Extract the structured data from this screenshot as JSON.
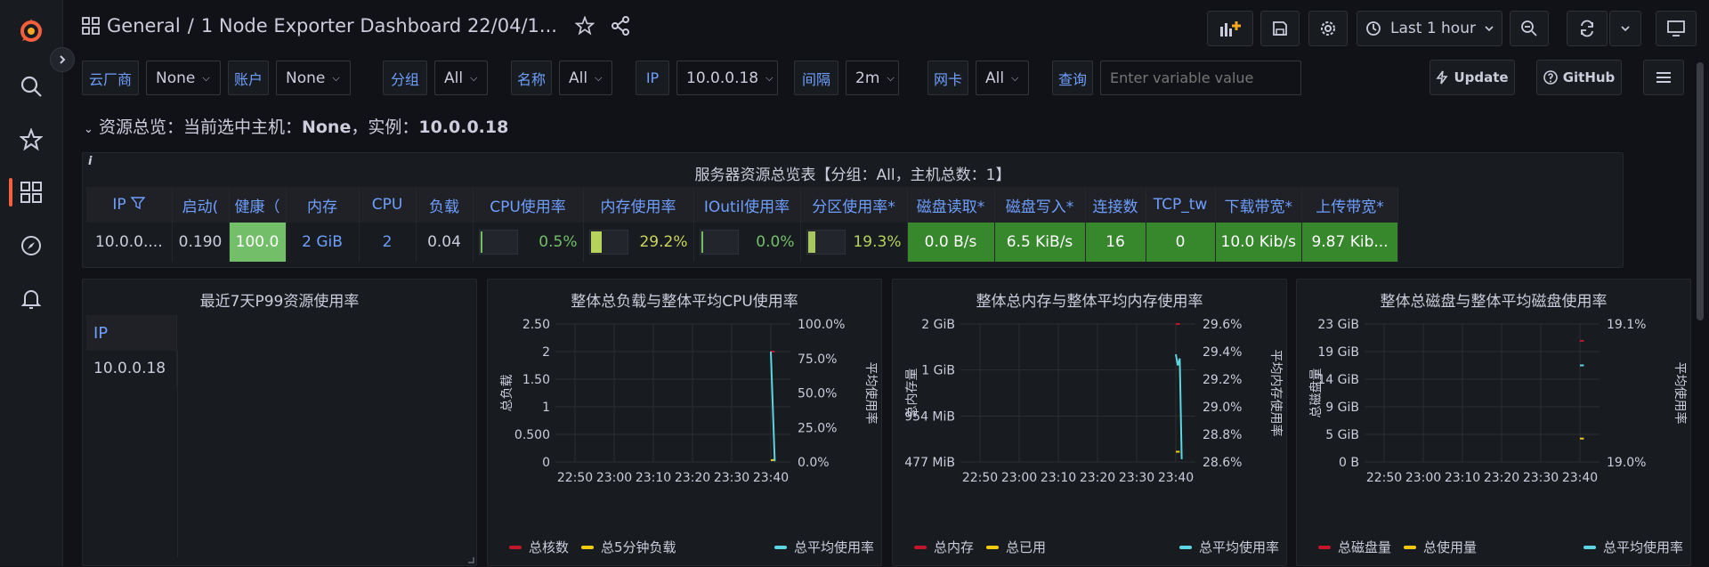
{
  "breadcrumb": {
    "folder": "General",
    "separator": "/",
    "title": "1 Node Exporter Dashboard 22/04/1..."
  },
  "toolbar": {
    "time_range": "Last 1 hour"
  },
  "variables": [
    {
      "label": "云厂商",
      "value": "None"
    },
    {
      "label": "账户",
      "value": "None"
    },
    {
      "label": "分组",
      "value": "All"
    },
    {
      "label": "名称",
      "value": "All"
    },
    {
      "label": "IP",
      "value": "10.0.0.18"
    },
    {
      "label": "间隔",
      "value": "2m"
    },
    {
      "label": "网卡",
      "value": "All"
    },
    {
      "label": "查询",
      "value": ""
    }
  ],
  "query_placeholder": "Enter variable value",
  "buttons": {
    "update": "Update",
    "github": "GitHub"
  },
  "row": {
    "prefix": "资源总览：当前选中主机：",
    "host": "None",
    "mid": "，实例：",
    "instance": "10.0.0.18"
  },
  "overview": {
    "title": "服务器资源总览表【分组：All，主机总数：1】",
    "info_icon": "i",
    "headers": [
      "IP",
      "启动(",
      "健康（",
      "内存",
      "CPU",
      "负载",
      "CPU使用率",
      "内存使用率",
      "IOutil使用率",
      "分区使用率*",
      "磁盘读取*",
      "磁盘写入*",
      "连接数",
      "TCP_tw",
      "下载带宽*",
      "上传带宽*"
    ],
    "row": {
      "ip": "10.0.0....",
      "uptime": "0.190",
      "health": "100.0",
      "memory": "2 GiB",
      "cpu": "2",
      "load": "0.04",
      "cpu_usage": "0.5%",
      "cpu_usage_fraction": 0.005,
      "mem_usage": "29.2%",
      "mem_usage_fraction": 0.292,
      "io_usage": "0.0%",
      "io_usage_fraction": 0.0,
      "disk_usage": "19.3%",
      "disk_usage_fraction": 0.193,
      "disk_read": "0.0 B/s",
      "disk_write": "6.5 KiB/s",
      "connections": "16",
      "tcp_tw": "0",
      "download": "10.0 Kib/s",
      "upload": "9.87 Kib..."
    }
  },
  "p99_panel": {
    "title": "最近7天P99资源使用率",
    "header": "IP",
    "rows": [
      "10.0.0.18"
    ]
  },
  "colors": {
    "red": "#c4162a",
    "yellow": "#f2cc0c",
    "cyan": "#5bd6e3",
    "green": "#37872d",
    "accent": "#f55f3e",
    "link": "#6e9fff"
  },
  "chart_data": [
    {
      "type": "line",
      "title": "整体总负载与整体平均CPU使用率",
      "x_ticks": [
        "22:50",
        "23:00",
        "23:10",
        "23:20",
        "23:30",
        "23:40"
      ],
      "y_left_label": "总负载",
      "y_left_ticks": [
        "2.50",
        "2",
        "1.50",
        "1",
        "0.500",
        "0"
      ],
      "y_right_label": "平均使用率",
      "y_right_ticks": [
        "100.0%",
        "75.0%",
        "50.0%",
        "25.0%",
        "0.0%"
      ],
      "series": [
        {
          "name": "总核数",
          "color": "#c4162a",
          "axis": "left",
          "x": [
            "23:40",
            "23:41"
          ],
          "values": [
            2,
            2
          ]
        },
        {
          "name": "总5分钟负载",
          "color": "#f2cc0c",
          "axis": "left",
          "x": [
            "23:40",
            "23:41"
          ],
          "values": [
            0.03,
            0.04
          ]
        },
        {
          "name": "总平均使用率",
          "color": "#5bd6e3",
          "axis": "right",
          "x": [
            "23:40",
            "23:41"
          ],
          "values": [
            80,
            0.5
          ]
        }
      ]
    },
    {
      "type": "line",
      "title": "整体总内存与整体平均内存使用率",
      "x_ticks": [
        "22:50",
        "23:00",
        "23:10",
        "23:20",
        "23:30",
        "23:40"
      ],
      "y_left_label": "总内存量",
      "y_left_ticks": [
        "2 GiB",
        "1 GiB",
        "954 MiB",
        "477 MiB"
      ],
      "y_right_label": "平均内存使用率",
      "y_right_ticks": [
        "29.6%",
        "29.4%",
        "29.2%",
        "29.0%",
        "28.8%",
        "28.6%"
      ],
      "series": [
        {
          "name": "总内存",
          "color": "#c4162a",
          "axis": "left",
          "x": [
            "23:40",
            "23:41"
          ],
          "values": [
            2,
            2
          ]
        },
        {
          "name": "总已用",
          "color": "#f2cc0c",
          "axis": "left",
          "x": [
            "23:40",
            "23:41"
          ],
          "values": [
            0.58,
            0.58
          ]
        },
        {
          "name": "总平均使用率",
          "color": "#5bd6e3",
          "axis": "right",
          "x": [
            "23:40",
            "23:40.5",
            "23:41",
            "23:41.5"
          ],
          "values": [
            29.38,
            29.3,
            29.35,
            28.62
          ]
        }
      ]
    },
    {
      "type": "line",
      "title": "整体总磁盘与整体平均磁盘使用率",
      "x_ticks": [
        "22:50",
        "23:00",
        "23:10",
        "23:20",
        "23:30",
        "23:40"
      ],
      "y_left_label": "总磁盘量",
      "y_left_ticks": [
        "23 GiB",
        "19 GiB",
        "14 GiB",
        "9 GiB",
        "5 GiB",
        "0 B"
      ],
      "y_right_label": "平均使用率",
      "y_right_ticks": [
        "19.1%",
        "19.0%"
      ],
      "series": [
        {
          "name": "总磁盘量",
          "color": "#c4162a",
          "axis": "left",
          "x": [
            "23:40",
            "23:41"
          ],
          "values": [
            20.2,
            20.2
          ]
        },
        {
          "name": "总使用量",
          "color": "#f2cc0c",
          "axis": "left",
          "x": [
            "23:40",
            "23:41"
          ],
          "values": [
            3.9,
            3.9
          ]
        },
        {
          "name": "总平均使用率",
          "color": "#5bd6e3",
          "axis": "right",
          "x": [
            "23:40",
            "23:41"
          ],
          "values": [
            19.07,
            19.07
          ]
        }
      ]
    }
  ]
}
